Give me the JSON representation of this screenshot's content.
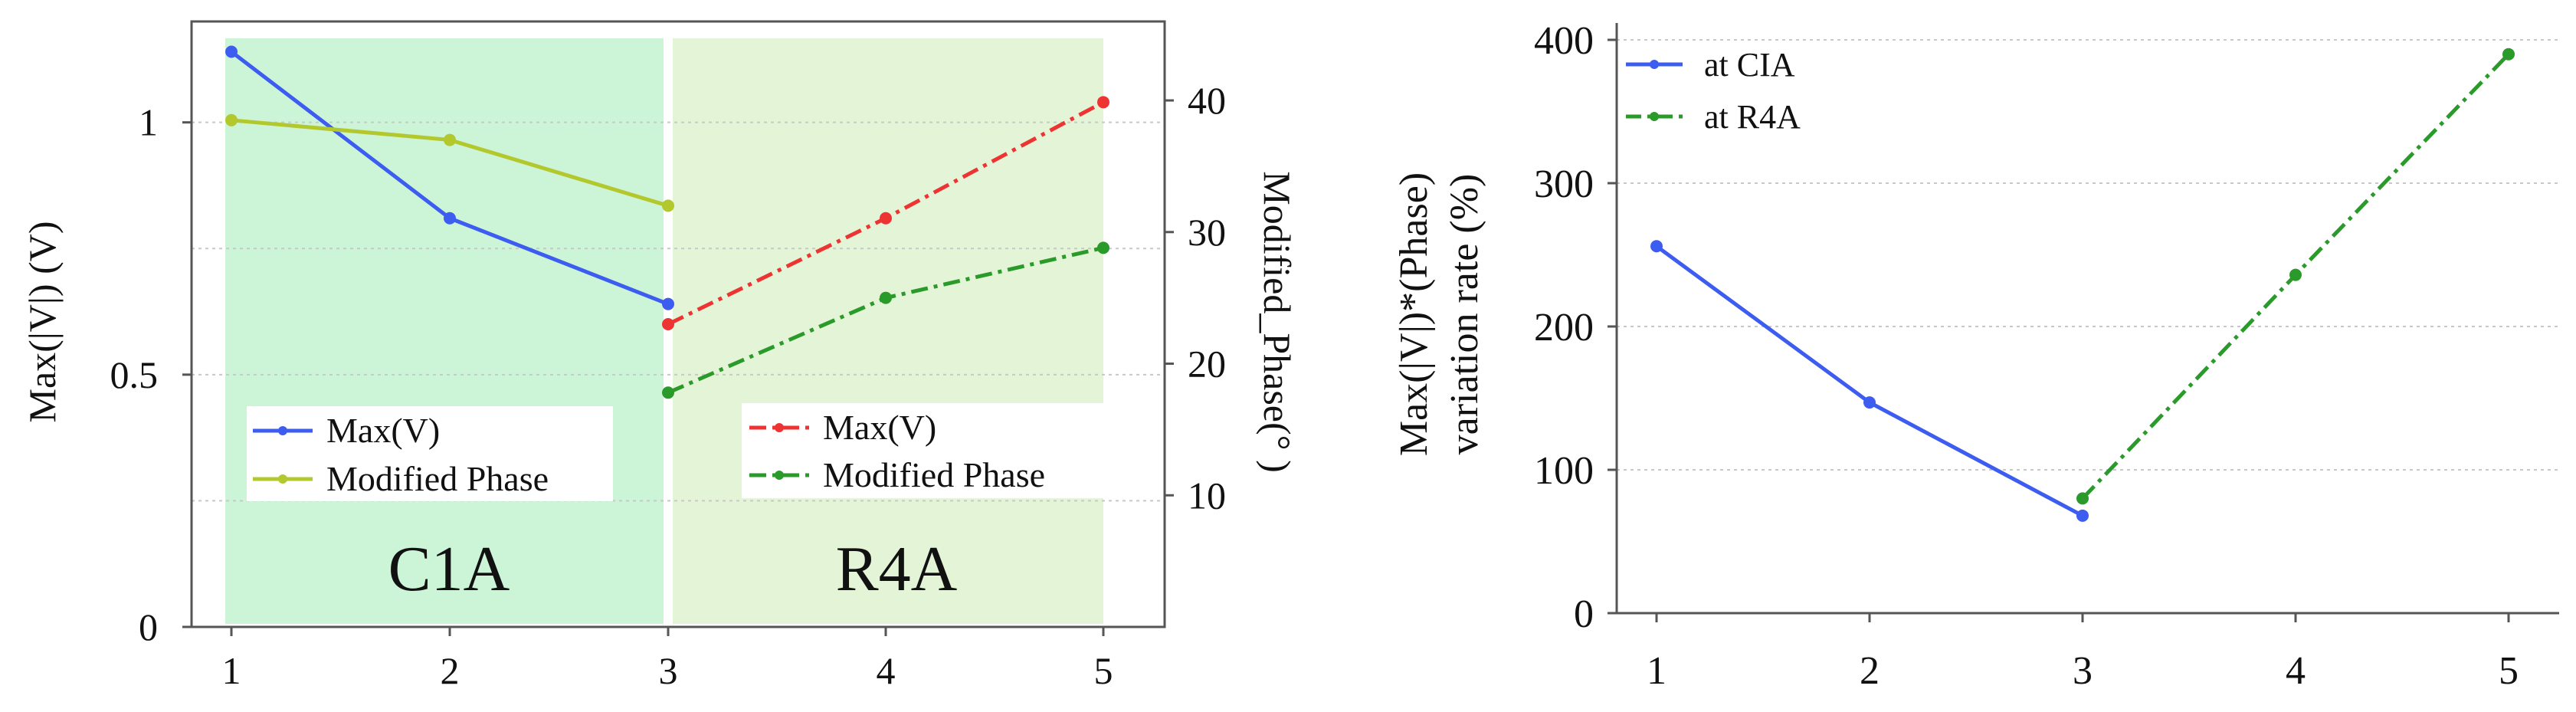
{
  "chart_data": [
    {
      "type": "line",
      "title": "",
      "xlabel": "",
      "ylabel": "Max(|V|)  (V)",
      "y2label": "Modified_Phase(°  )",
      "x_ticks": [
        "1",
        "2",
        "3",
        "4",
        "5"
      ],
      "ylim": [
        0,
        1.2
      ],
      "y_ticks": [
        "0",
        "0.5",
        "1"
      ],
      "y_tick_values": [
        0,
        0.5,
        1
      ],
      "y2lim": [
        0,
        46
      ],
      "y2_ticks": [
        "10",
        "20",
        "30",
        "40"
      ],
      "y2_tick_values": [
        10,
        20,
        30,
        40
      ],
      "regions": [
        {
          "label": "C1A",
          "x_range": [
            1,
            3
          ],
          "color": "#ccf5d8"
        },
        {
          "label": "R4A",
          "x_range": [
            3,
            5
          ],
          "color": "#e4f4d6"
        }
      ],
      "series": [
        {
          "name": "Max(V)",
          "axis": "left",
          "color": "#3d5cf0",
          "style": "solid",
          "x": [
            1,
            2,
            3
          ],
          "values": [
            1.14,
            0.81,
            0.64
          ]
        },
        {
          "name": "Modified Phase",
          "axis": "right",
          "color": "#b3c82c",
          "style": "solid",
          "x": [
            1,
            2,
            3
          ],
          "values": [
            38.5,
            37,
            32
          ]
        },
        {
          "name": "Max(V)",
          "axis": "left",
          "color": "#ee3333",
          "style": "dashdot",
          "x": [
            3,
            4,
            5
          ],
          "values": [
            0.6,
            0.81,
            1.04
          ]
        },
        {
          "name": "Modified Phase",
          "axis": "right",
          "color": "#2a9a2a",
          "style": "dashdot",
          "x": [
            3,
            4,
            5
          ],
          "values": [
            17.8,
            25,
            28.8
          ]
        }
      ],
      "legends": [
        {
          "region": "C1A",
          "entries": [
            "Max(V)",
            "Modified Phase"
          ]
        },
        {
          "region": "R4A",
          "entries": [
            "Max(V)",
            "Modified Phase"
          ]
        }
      ]
    },
    {
      "type": "line",
      "title": "",
      "xlabel": "",
      "ylabel_lines": [
        "Max(|V|)*(Phase)",
        "variation rate (%)"
      ],
      "x_ticks": [
        "1",
        "2",
        "3",
        "4",
        "5"
      ],
      "ylim": [
        0,
        400
      ],
      "y_ticks": [
        "0",
        "100",
        "200",
        "300",
        "400"
      ],
      "y_tick_values": [
        0,
        100,
        200,
        300,
        400
      ],
      "series": [
        {
          "name": "at CIA",
          "color": "#3d5cf0",
          "style": "solid",
          "x": [
            1,
            2,
            3
          ],
          "values": [
            256,
            147,
            68
          ]
        },
        {
          "name": "at R4A",
          "color": "#2a9a2a",
          "style": "dashdot",
          "x": [
            3,
            4,
            5
          ],
          "values": [
            80,
            236,
            390
          ]
        }
      ],
      "legend_position": "top-left"
    }
  ]
}
